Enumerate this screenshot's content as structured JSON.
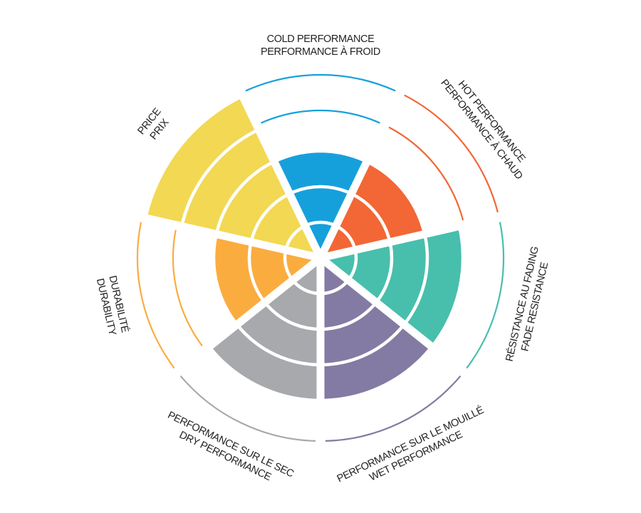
{
  "chart_data": {
    "type": "polar-area",
    "max_level": 5,
    "grid": true,
    "categories": [
      {
        "label_lines": [
          "COLD PERFORMANCE",
          "PERFORMANCE À FROID"
        ],
        "value": 3,
        "color": "#16a0db"
      },
      {
        "label_lines": [
          "HOT PERFORMANCE",
          "PERFORMANCE À CHAUD"
        ],
        "value": 3,
        "color": "#f26735"
      },
      {
        "label_lines": [
          "RÉSISTANCE AU FADING",
          "FADE RESISTANCE"
        ],
        "value": 4,
        "color": "#47bfac"
      },
      {
        "label_lines": [
          "PERFORMANCE SUR LE MOUILLÉ",
          "WET PERFORMANCE"
        ],
        "value": 4,
        "color": "#837ba3"
      },
      {
        "label_lines": [
          "PERFORMANCE SUR LE SEC",
          "DRY PERFORMANCE"
        ],
        "value": 4,
        "color": "#a7a9ac"
      },
      {
        "label_lines": [
          "DURABILITÉ",
          "DURABILITY"
        ],
        "value": 3,
        "color": "#fbac3f"
      },
      {
        "label_lines": [
          "PRICE",
          "PRIX"
        ],
        "value": 5,
        "color": "#f2d853"
      }
    ]
  }
}
